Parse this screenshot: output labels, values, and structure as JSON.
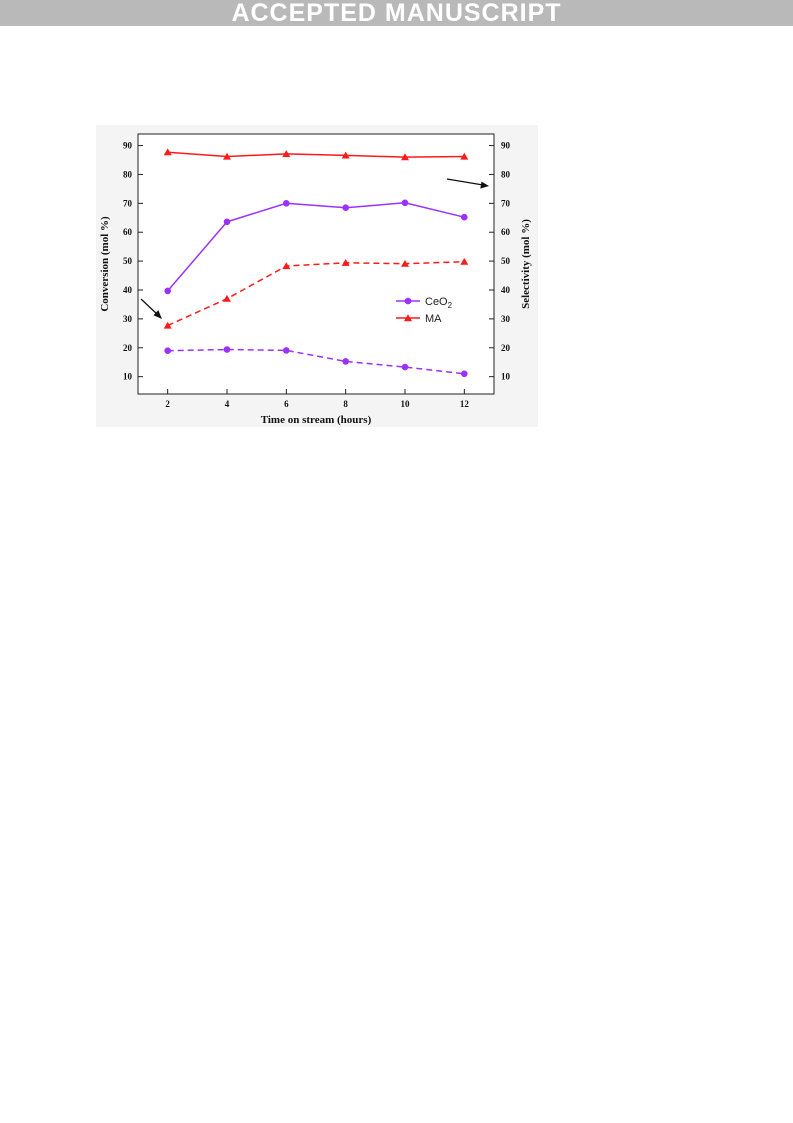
{
  "banner": {
    "text": "ACCEPTED MANUSCRIPT"
  },
  "chart_data": {
    "type": "line",
    "title": "",
    "xlabel": "Time on stream (hours)",
    "ylabel": "Conversion (mol %)",
    "y2label": "Selectivity (mol %)",
    "x": [
      2,
      4,
      6,
      8,
      10,
      12
    ],
    "xticks": [
      "2",
      "4",
      "6",
      "8",
      "10",
      "12"
    ],
    "xlim": [
      1,
      13
    ],
    "ylim": [
      4,
      94
    ],
    "yticks": [
      "10",
      "20",
      "30",
      "40",
      "50",
      "60",
      "70",
      "80",
      "90"
    ],
    "y2ticks": [
      "10",
      "20",
      "30",
      "40",
      "50",
      "60",
      "70",
      "80",
      "90"
    ],
    "grid": false,
    "legend": {
      "placement": "center-right",
      "entries": [
        {
          "label": "CeO",
          "subscript": "2",
          "color": "#9b30ff",
          "marker": "circle"
        },
        {
          "label": "MA",
          "subscript": "",
          "color": "#ff1a1a",
          "marker": "triangle"
        }
      ]
    },
    "series": [
      {
        "catalyst": "CeO2",
        "measure": "conversion",
        "axis": "left",
        "style": "dashed",
        "color": "#9b30ff",
        "marker": "circle",
        "values": [
          19.0,
          19.4,
          19.1,
          15.3,
          13.3,
          11.0
        ]
      },
      {
        "catalyst": "CeO2",
        "measure": "selectivity",
        "axis": "right",
        "style": "solid",
        "color": "#9b30ff",
        "marker": "circle",
        "values": [
          39.7,
          63.6,
          70.0,
          68.5,
          70.2,
          65.2
        ]
      },
      {
        "catalyst": "MA",
        "measure": "conversion",
        "axis": "left",
        "style": "dashed",
        "color": "#ff1a1a",
        "marker": "triangle",
        "values": [
          27.7,
          37.0,
          48.3,
          49.4,
          49.1,
          49.8
        ]
      },
      {
        "catalyst": "MA",
        "measure": "selectivity",
        "axis": "right",
        "style": "solid",
        "color": "#ff1a1a",
        "marker": "triangle",
        "values": [
          87.7,
          86.2,
          87.1,
          86.6,
          86.0,
          86.2
        ]
      }
    ],
    "annotations": [
      {
        "type": "arrow",
        "meaning": "points to left axis"
      },
      {
        "type": "arrow",
        "meaning": "points to right axis"
      }
    ]
  }
}
